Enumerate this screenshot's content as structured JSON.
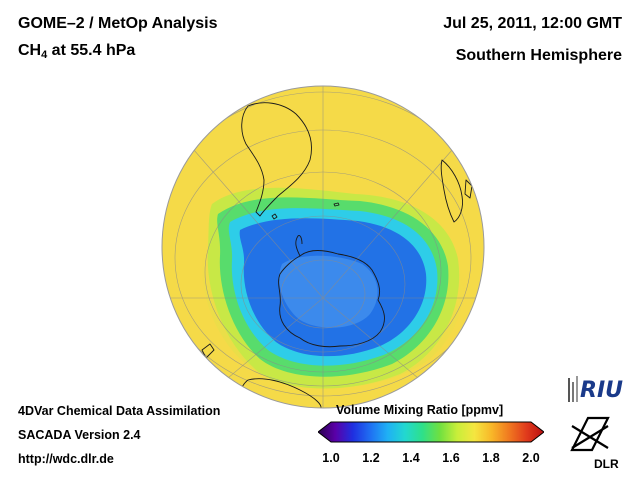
{
  "header": {
    "title_line1": "GOME–2 / MetOp Analysis",
    "species": "CH",
    "species_sub": "4",
    "level_text": " at 55.4 hPa",
    "date": "Jul 25, 2011, 12:00 GMT",
    "hemisphere": "Southern Hemisphere"
  },
  "footer": {
    "line1": "4DVar Chemical Data Assimilation",
    "line2": "SACADA Version 2.4",
    "line3": "http://wdc.dlr.de"
  },
  "colorbar": {
    "title": "Volume Mixing Ratio [ppmv]",
    "ticks": [
      "1.0",
      "1.2",
      "1.4",
      "1.6",
      "1.8",
      "2.0"
    ],
    "colors": [
      "#2b004f",
      "#5a00a8",
      "#1f2fe0",
      "#1f6ff2",
      "#1fb0f5",
      "#22d8d0",
      "#2ee08a",
      "#6fe040",
      "#c8ee3a",
      "#f5e640",
      "#f8b628",
      "#f07820",
      "#e03a1c",
      "#b80e10"
    ]
  },
  "logos": {
    "riu": "RIU",
    "dlr": "DLR"
  },
  "map": {
    "projection": "orthographic, south pole centred",
    "field_colors": {
      "outer": "#f5da48",
      "ring": "#c6ea4a",
      "green": "#58dc6c",
      "cyan": "#2ecde8",
      "blue": "#2272e6",
      "core": "#3a86ea",
      "coast": "#1a1a1a",
      "grid": "#8a8a8a"
    }
  }
}
